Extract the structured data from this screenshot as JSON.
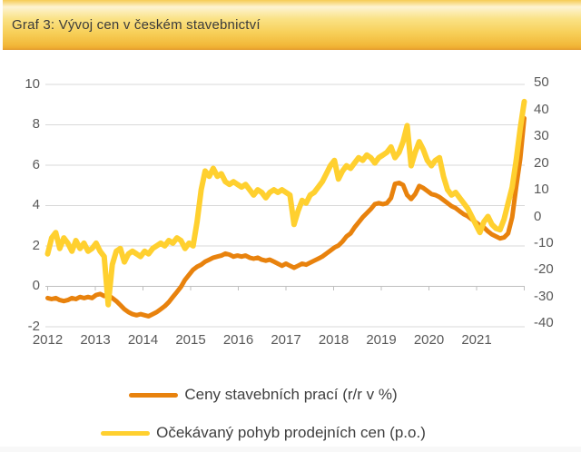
{
  "title_bar": {
    "title": "Graf 3: Vývoj cen v českém stavebnictví"
  },
  "legend": [
    {
      "label": "Ceny stavebních prací (r/r v %)"
    },
    {
      "label": "Očekávaný pohyb prodejních cen (p.o.)"
    }
  ],
  "colors": {
    "series_orange": "#E8820D",
    "series_yellow": "#FFD02F",
    "grid": "#D9D9D9",
    "axis": "#BFBFBF",
    "axis_label": "#595959",
    "legend_text": "#404040",
    "title_text": "#3B3B3B"
  },
  "chart_data": {
    "type": "line",
    "title": "Graf 3: Vývoj cen v českém stavebnictví",
    "x_axis": {
      "years": [
        "2012",
        "2013",
        "2014",
        "2015",
        "2016",
        "2017",
        "2018",
        "2019",
        "2020",
        "2021"
      ],
      "start": "2012-01",
      "end": "2021-11"
    },
    "left_axis": {
      "ticks": [
        10,
        8,
        6,
        4,
        2,
        0,
        -2
      ],
      "min": -2,
      "max": 10
    },
    "right_axis": {
      "ticks": [
        50,
        40,
        30,
        20,
        10,
        0,
        -10,
        -20,
        -30,
        -40
      ],
      "min": -40,
      "max": 50
    },
    "grid": true,
    "legend_position": "bottom",
    "series": [
      {
        "name": "Ceny stavebních prací (r/r v %)",
        "axis": "left",
        "color": "#E8820D",
        "values_monthly": [
          -0.6,
          -0.65,
          -0.6,
          -0.7,
          -0.75,
          -0.7,
          -0.6,
          -0.65,
          -0.55,
          -0.6,
          -0.55,
          -0.6,
          -0.45,
          -0.4,
          -0.5,
          -0.45,
          -0.6,
          -0.75,
          -0.95,
          -1.15,
          -1.3,
          -1.4,
          -1.45,
          -1.4,
          -1.45,
          -1.5,
          -1.4,
          -1.3,
          -1.15,
          -1.0,
          -0.8,
          -0.55,
          -0.3,
          -0.05,
          0.3,
          0.55,
          0.8,
          0.95,
          1.05,
          1.2,
          1.3,
          1.4,
          1.45,
          1.5,
          1.6,
          1.55,
          1.45,
          1.5,
          1.45,
          1.5,
          1.4,
          1.35,
          1.4,
          1.3,
          1.25,
          1.3,
          1.2,
          1.1,
          1.0,
          1.1,
          1.0,
          0.9,
          1.0,
          1.1,
          1.05,
          1.15,
          1.25,
          1.35,
          1.45,
          1.6,
          1.75,
          1.9,
          2.0,
          2.2,
          2.45,
          2.6,
          2.9,
          3.15,
          3.4,
          3.6,
          3.8,
          4.05,
          4.1,
          4.05,
          4.1,
          4.35,
          5.05,
          5.1,
          5.0,
          4.5,
          4.3,
          4.55,
          4.95,
          4.85,
          4.7,
          4.55,
          4.5,
          4.4,
          4.25,
          4.1,
          3.95,
          3.85,
          3.7,
          3.55,
          3.45,
          3.3,
          3.15,
          3.0,
          2.9,
          2.7,
          2.55,
          2.45,
          2.35,
          2.4,
          2.6,
          3.4,
          4.9,
          6.3,
          8.3
        ]
      },
      {
        "name": "Očekávaný pohyb prodejních cen (p.o.)",
        "axis": "right",
        "color": "#FFD02F",
        "values_monthly": [
          -14,
          -8,
          -6,
          -12,
          -8,
          -10,
          -13,
          -9,
          -12,
          -10,
          -13,
          -12,
          -10,
          -13,
          -15,
          -33,
          -18,
          -13,
          -12,
          -17,
          -14,
          -13,
          -14,
          -15,
          -13,
          -14,
          -12,
          -11,
          -10,
          -11,
          -9,
          -10,
          -8,
          -9,
          -12,
          -10,
          -11,
          -2,
          10,
          17,
          15,
          18,
          15,
          16,
          13,
          12,
          13,
          12,
          11,
          12,
          10,
          8,
          10,
          9,
          7,
          9,
          10,
          9,
          10,
          9,
          8,
          -3,
          2,
          6,
          5,
          8,
          9,
          11,
          13,
          16,
          19,
          21,
          14,
          17,
          19,
          18,
          20,
          22,
          21,
          23,
          22,
          20,
          22,
          23,
          24,
          26,
          22,
          24,
          28,
          34,
          19,
          24,
          28,
          25,
          21,
          19,
          21,
          22,
          15,
          10,
          8,
          9,
          7,
          5,
          3,
          0,
          -3,
          -6,
          -2,
          0,
          -3,
          -4.5,
          -5,
          -1,
          5,
          11,
          21,
          33,
          43
        ]
      }
    ]
  }
}
